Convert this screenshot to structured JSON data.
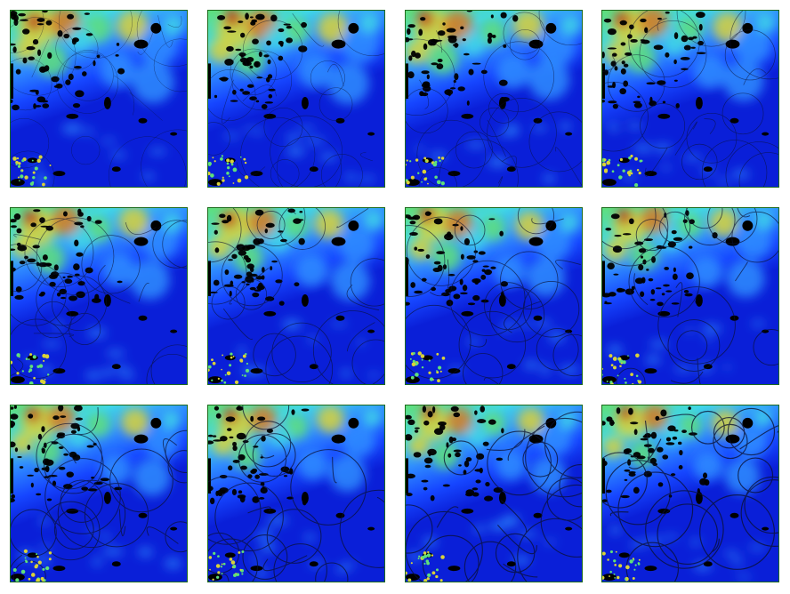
{
  "figure": {
    "rows": 3,
    "cols": 4,
    "panel_count": 12,
    "colormap": "jet",
    "mask_color": "#000000",
    "frame_color": "#1d6b1d",
    "palette": {
      "deep_blue": "#0a1fd8",
      "blue": "#1646ff",
      "light_blue": "#2f8dff",
      "cyan": "#3fd6e8",
      "green": "#5fe07a",
      "yellow": "#d9d23a",
      "orange": "#d8781e",
      "red": "#b8321a"
    }
  },
  "panels": [
    {
      "row": 1,
      "col": 1,
      "variant": 0.0
    },
    {
      "row": 1,
      "col": 2,
      "variant": 0.05
    },
    {
      "row": 1,
      "col": 3,
      "variant": 0.1
    },
    {
      "row": 1,
      "col": 4,
      "variant": 0.15
    },
    {
      "row": 2,
      "col": 1,
      "variant": 0.2
    },
    {
      "row": 2,
      "col": 2,
      "variant": 0.25
    },
    {
      "row": 2,
      "col": 3,
      "variant": 0.3
    },
    {
      "row": 2,
      "col": 4,
      "variant": 0.35
    },
    {
      "row": 3,
      "col": 1,
      "variant": 0.4
    },
    {
      "row": 3,
      "col": 2,
      "variant": 0.45
    },
    {
      "row": 3,
      "col": 3,
      "variant": 0.5
    },
    {
      "row": 3,
      "col": 4,
      "variant": 0.55
    }
  ]
}
